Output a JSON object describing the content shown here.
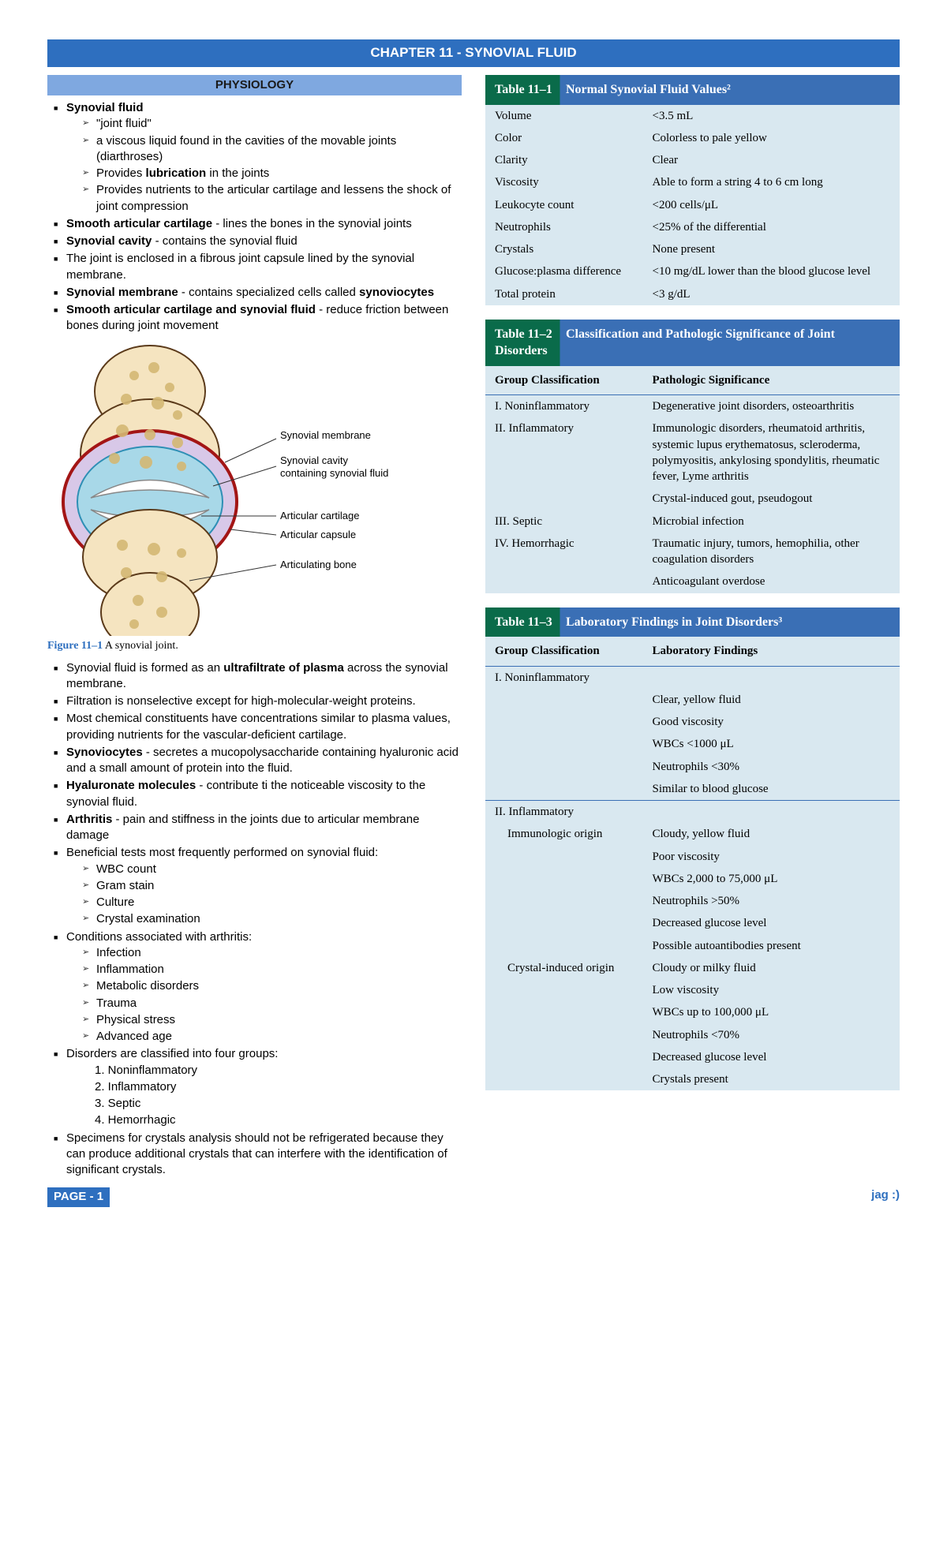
{
  "chapter_title": "CHAPTER 11 - SYNOVIAL FLUID",
  "section_physiology": "PHYSIOLOGY",
  "left": {
    "b1": "Synovial fluid",
    "b1s1": "\"joint fluid\"",
    "b1s2": "a viscous liquid found in the cavities of the movable joints (diarthroses)",
    "b1s3_a": "Provides ",
    "b1s3_b": "lubrication",
    "b1s3_c": " in the joints",
    "b1s4": "Provides nutrients to the articular cartilage and lessens the shock of joint compression",
    "b2_a": "Smooth articular cartilage",
    "b2_b": " - lines the bones in the synovial joints",
    "b3_a": "Synovial cavity",
    "b3_b": " - contains the synovial fluid",
    "b4": "The joint is enclosed in a fibrous joint capsule lined by the synovial membrane.",
    "b5_a": "Synovial membrane",
    "b5_b": " - contains specialized cells called ",
    "b5_c": "synoviocytes",
    "b6_a": "Smooth articular cartilage and synovial fluid",
    "b6_b": " - reduce friction between bones during joint movement",
    "fig_label1": "Synovial membrane",
    "fig_label2a": "Synovial cavity",
    "fig_label2b": "containing synovial fluid",
    "fig_label3": "Articular cartilage",
    "fig_label4": "Articular capsule",
    "fig_label5": "Articulating bone",
    "fig_num": "Figure 11–1",
    "fig_cap": "  A synovial joint.",
    "c1_a": "Synovial fluid is formed as an ",
    "c1_b": "ultrafiltrate of plasma",
    "c1_c": " across the synovial membrane.",
    "c2": "Filtration is nonselective except for high-molecular-weight proteins.",
    "c3": "Most chemical constituents have concentrations similar to plasma values, providing nutrients for the vascular-deficient cartilage.",
    "c4_a": "Synoviocytes",
    "c4_b": " - secretes a mucopolysaccharide containing hyaluronic acid and a small amount of protein into the fluid.",
    "c5_a": "Hyaluronate molecules",
    "c5_b": " - contribute ti the noticeable viscosity to the synovial fluid.",
    "c6_a": "Arthritis",
    "c6_b": " - pain and stiffness in the joints due to articular membrane damage",
    "c7": "Beneficial tests most frequently performed on synovial fluid:",
    "c7s1": "WBC count",
    "c7s2": "Gram stain",
    "c7s3": "Culture",
    "c7s4": "Crystal examination",
    "c8": "Conditions associated with arthritis:",
    "c8s1": "Infection",
    "c8s2": "Inflammation",
    "c8s3": "Metabolic disorders",
    "c8s4": "Trauma",
    "c8s5": "Physical stress",
    "c8s6": "Advanced age",
    "c9": "Disorders are classified into four groups:",
    "c9n1": "1.  Noninflammatory",
    "c9n2": "2.  Inflammatory",
    "c9n3": "3.  Septic",
    "c9n4": "4.  Hemorrhagic",
    "c10": "Specimens for crystals analysis should not be refrigerated because they can produce additional crystals that can interfere with the identification of significant crystals."
  },
  "table1": {
    "num": "Table 11–1",
    "title": "Normal Synovial Fluid Values²",
    "rows": [
      [
        "Volume",
        "<3.5 mL"
      ],
      [
        "Color",
        "Colorless to pale yellow"
      ],
      [
        "Clarity",
        "Clear"
      ],
      [
        "Viscosity",
        "Able to form a string 4 to 6 cm long"
      ],
      [
        "Leukocyte count",
        "<200 cells/μL"
      ],
      [
        "Neutrophils",
        "<25% of the differential"
      ],
      [
        "Crystals",
        "None present"
      ],
      [
        "Glucose:plasma difference",
        "<10 mg/dL lower than the blood glucose level"
      ],
      [
        "Total protein",
        "<3 g/dL"
      ]
    ]
  },
  "table2": {
    "num": "Table 11–2",
    "title": "Classification and Pathologic Significance of Joint Disorders",
    "head1": "Group Classification",
    "head2": "Pathologic Significance",
    "rows": [
      [
        "I. Noninflammatory",
        "Degenerative joint disorders, osteoarthritis"
      ],
      [
        "II. Inflammatory",
        "Immunologic disorders, rheumatoid arthritis, systemic lupus erythematosus, scleroderma, polymyositis, ankylosing spondylitis, rheumatic fever, Lyme arthritis"
      ],
      [
        "",
        "Crystal-induced gout, pseudogout"
      ],
      [
        "III. Septic",
        "Microbial infection"
      ],
      [
        "IV. Hemorrhagic",
        "Traumatic injury, tumors, hemophilia, other coagulation disorders"
      ],
      [
        "",
        "Anticoagulant overdose"
      ]
    ]
  },
  "table3": {
    "num": "Table 11–3",
    "title": "Laboratory Findings in Joint Disorders³",
    "head1": "Group Classification",
    "head2": "Laboratory Findings",
    "groups": [
      {
        "name": "I. Noninflammatory",
        "sub": "",
        "findings": [
          "Clear, yellow fluid",
          "Good viscosity",
          "WBCs <1000 μL",
          "Neutrophils <30%",
          "Similar to blood glucose"
        ]
      },
      {
        "name": "II. Inflammatory",
        "sub": "Immunologic origin",
        "findings": [
          "Cloudy, yellow fluid",
          "Poor viscosity",
          "WBCs 2,000 to 75,000 μL",
          "Neutrophils >50%",
          "Decreased glucose level",
          "Possible autoantibodies present"
        ]
      },
      {
        "name": "",
        "sub": "Crystal-induced origin",
        "findings": [
          "Cloudy or milky fluid",
          "Low viscosity",
          "WBCs up to 100,000 μL",
          "Neutrophils <70%",
          "Decreased glucose level",
          "Crystals present"
        ]
      }
    ]
  },
  "footer": {
    "page": "PAGE - 1",
    "sig": "jag :)"
  },
  "colors": {
    "header_blue": "#2e6fbf",
    "section_blue": "#7fa8e0",
    "table_green": "#0a6b4a",
    "table_blue": "#3a6fb5",
    "table_bg": "#d9e8f0"
  }
}
